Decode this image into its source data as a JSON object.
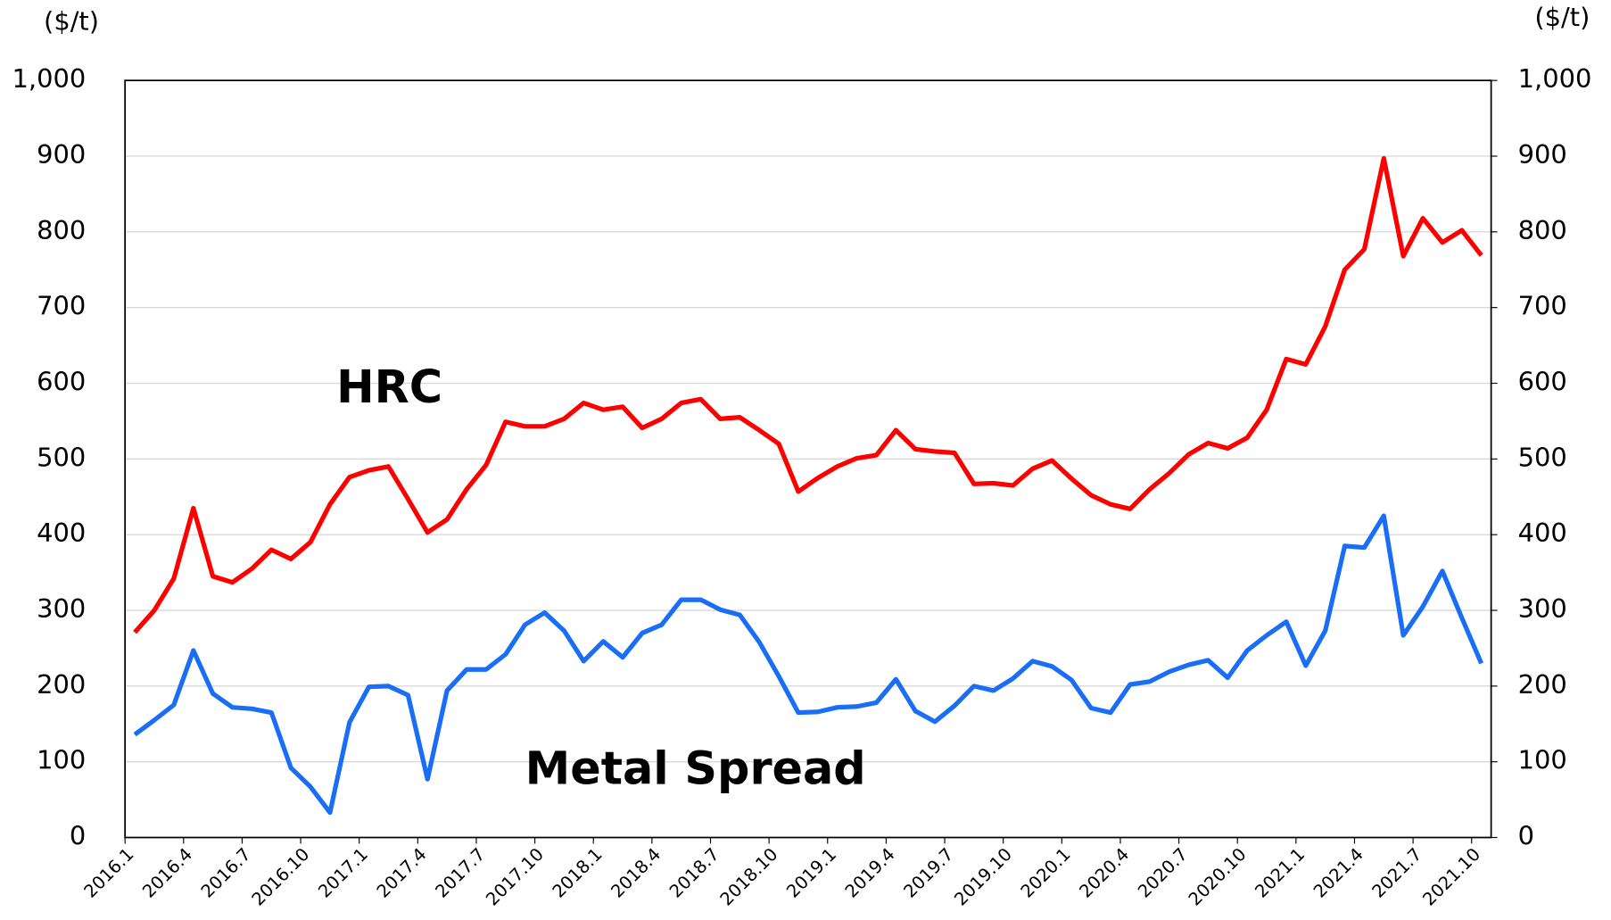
{
  "chart_data": {
    "type": "line",
    "y_unit": "($/t)",
    "y2_unit": "($/t)",
    "categories": [
      "2016.1",
      null,
      null,
      "2016.4",
      null,
      null,
      "2016.7",
      null,
      null,
      "2016.10",
      null,
      null,
      "2017.1",
      null,
      null,
      "2017.4",
      null,
      null,
      "2017.7",
      null,
      null,
      "2017.10",
      null,
      null,
      "2018.1",
      null,
      null,
      "2018.4",
      null,
      null,
      "2018.7",
      null,
      null,
      "2018.10",
      null,
      null,
      "2019.1",
      null,
      null,
      "2019.4",
      null,
      null,
      "2019.7",
      null,
      null,
      "2019.10",
      null,
      null,
      "2020.1",
      null,
      null,
      "2020.4",
      null,
      null,
      "2020.7",
      null,
      null,
      "2020.10",
      null,
      null,
      "2021.1",
      null,
      null,
      "2021.4",
      null,
      null,
      "2021.7",
      null,
      null,
      "2021.10"
    ],
    "series": [
      {
        "name": "HRC",
        "color": "#ff0000",
        "values": [
          271,
          300,
          342,
          435,
          345,
          337,
          355,
          380,
          368,
          390,
          440,
          476,
          485,
          490,
          447,
          403,
          420,
          460,
          492,
          549,
          543,
          543,
          553,
          574,
          565,
          569,
          541,
          553,
          574,
          579,
          553,
          555,
          538,
          520,
          457,
          475,
          490,
          501,
          505,
          538,
          513,
          510,
          508,
          467,
          468,
          465,
          487,
          498,
          474,
          452,
          440,
          434,
          460,
          481,
          506,
          521,
          514,
          528,
          565,
          632,
          625,
          675,
          750,
          777,
          897,
          768,
          818,
          786,
          802,
          769
        ]
      },
      {
        "name": "Metal Spread",
        "color": "#1a6ef5",
        "values": [
          136,
          155,
          175,
          247,
          190,
          172,
          170,
          165,
          92,
          67,
          33,
          152,
          199,
          200,
          188,
          77,
          194,
          222,
          222,
          242,
          281,
          297,
          273,
          233,
          259,
          238,
          270,
          281,
          314,
          314,
          301,
          294,
          258,
          213,
          165,
          166,
          172,
          173,
          178,
          209,
          167,
          153,
          174,
          200,
          194,
          210,
          233,
          226,
          208,
          171,
          165,
          202,
          206,
          219,
          228,
          234,
          211,
          247,
          267,
          285,
          227,
          273,
          385,
          383,
          425,
          267,
          305,
          352,
          290,
          230
        ]
      }
    ],
    "ylim": [
      0,
      1000
    ],
    "yticks": [
      0,
      100,
      200,
      300,
      400,
      500,
      600,
      700,
      800,
      900,
      {
        "value": 1000,
        "label": "1,000"
      }
    ],
    "y2lim": [
      0,
      1000
    ],
    "y2ticks": [
      0,
      100,
      200,
      300,
      400,
      500,
      600,
      700,
      800,
      900,
      {
        "value": 1000,
        "label": "1,000"
      }
    ],
    "grid": true
  }
}
